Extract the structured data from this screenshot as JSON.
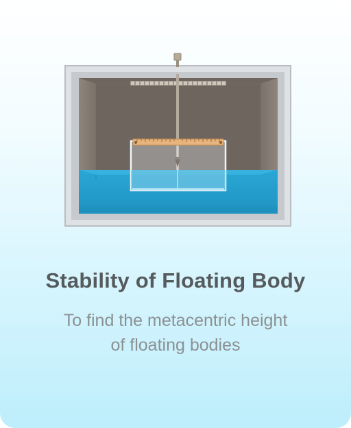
{
  "card": {
    "title": "Stability of Floating Body",
    "description_lines": [
      "To find the metacentric height",
      "of floating bodies"
    ]
  },
  "illustration": {
    "subject": "water-tank-with-floating-pontoon",
    "colors": {
      "tank_frame": "#c8cbcf",
      "tank_back_wall": "#6f6660",
      "water": "#2fa6d3",
      "scale_bar": "#e7b57e",
      "title_text": "#555a5c",
      "subtitle_text": "#8b9193"
    }
  }
}
